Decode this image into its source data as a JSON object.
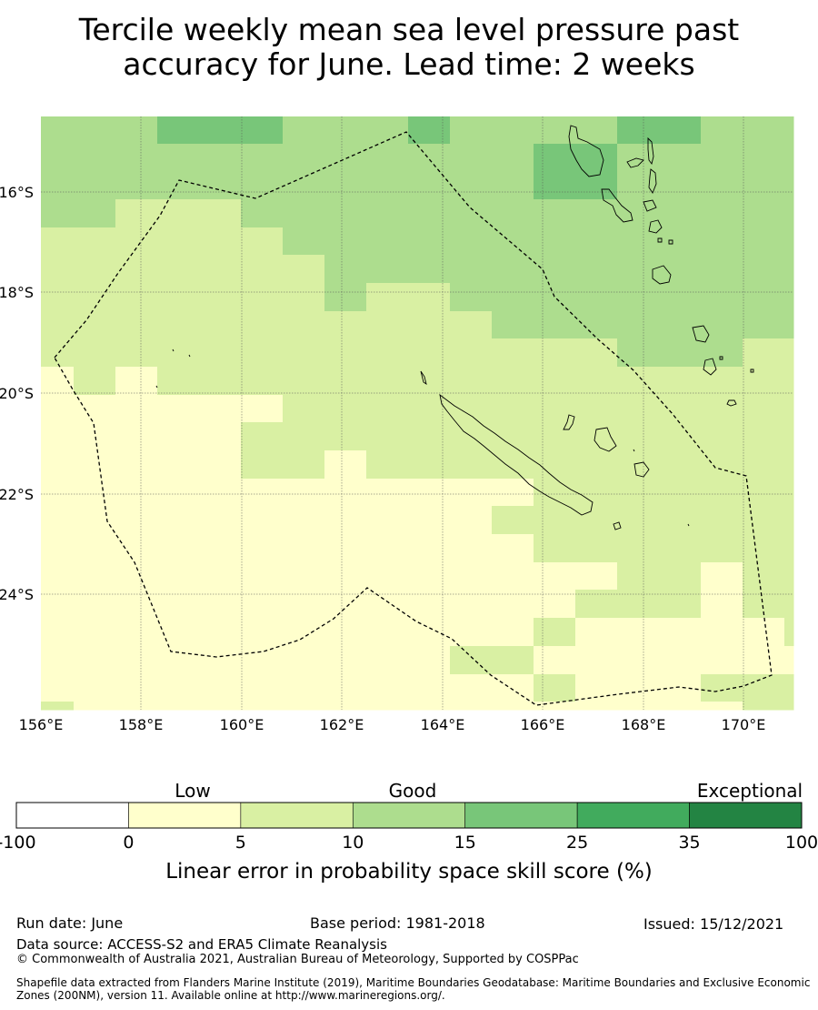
{
  "title": {
    "line1": "Tercile weekly mean sea level pressure past",
    "line2": "accuracy for June. Lead time: 2 weeks"
  },
  "map": {
    "lon_ticks": [
      "156°E",
      "158°E",
      "160°E",
      "162°E",
      "164°E",
      "166°E",
      "168°E",
      "170°E"
    ],
    "lat_ticks": [
      "16°S",
      "18°S",
      "20°S",
      "22°S",
      "24°S"
    ],
    "lon_values": [
      156,
      158,
      160,
      162,
      164,
      166,
      168,
      170
    ],
    "lat_values": [
      -16,
      -18,
      -20,
      -22,
      -24
    ],
    "extent": {
      "lon": [
        156,
        171
      ],
      "lat": [
        -26.1,
        -14.25
      ]
    },
    "boundary_style": "dashed",
    "skill_grid_cell_deg": 0.83
  },
  "colorbar": {
    "categories": [
      "Low",
      "Good",
      "Exceptional"
    ],
    "bounds": [
      "-100",
      "0",
      "5",
      "10",
      "15",
      "25",
      "35",
      "100"
    ],
    "colors": [
      "#ffffff",
      "#ffffcc",
      "#d9f0a3",
      "#addd8e",
      "#78c679",
      "#41ab5d",
      "#238443"
    ],
    "title": "Linear error in probability space skill score (%)"
  },
  "footer": {
    "run_date": "Run date: June",
    "base_period": "Base period: 1981-2018",
    "issued": "Issued: 15/12/2021",
    "data_source": "Data source: ACCESS-S2 and ERA5 Climate Reanalysis",
    "copyright": "© Commonwealth of Australia 2021, Australian Bureau of Meteorology, Supported by COSPPac",
    "shapefile": "Shapefile data extracted from Flanders Marine Institute (2019), Maritime Boundaries Geodatabase: Maritime Boundaries and Exclusive Economic Zones (200NM), version 11. Available online at http://www.marineregions.org/."
  }
}
